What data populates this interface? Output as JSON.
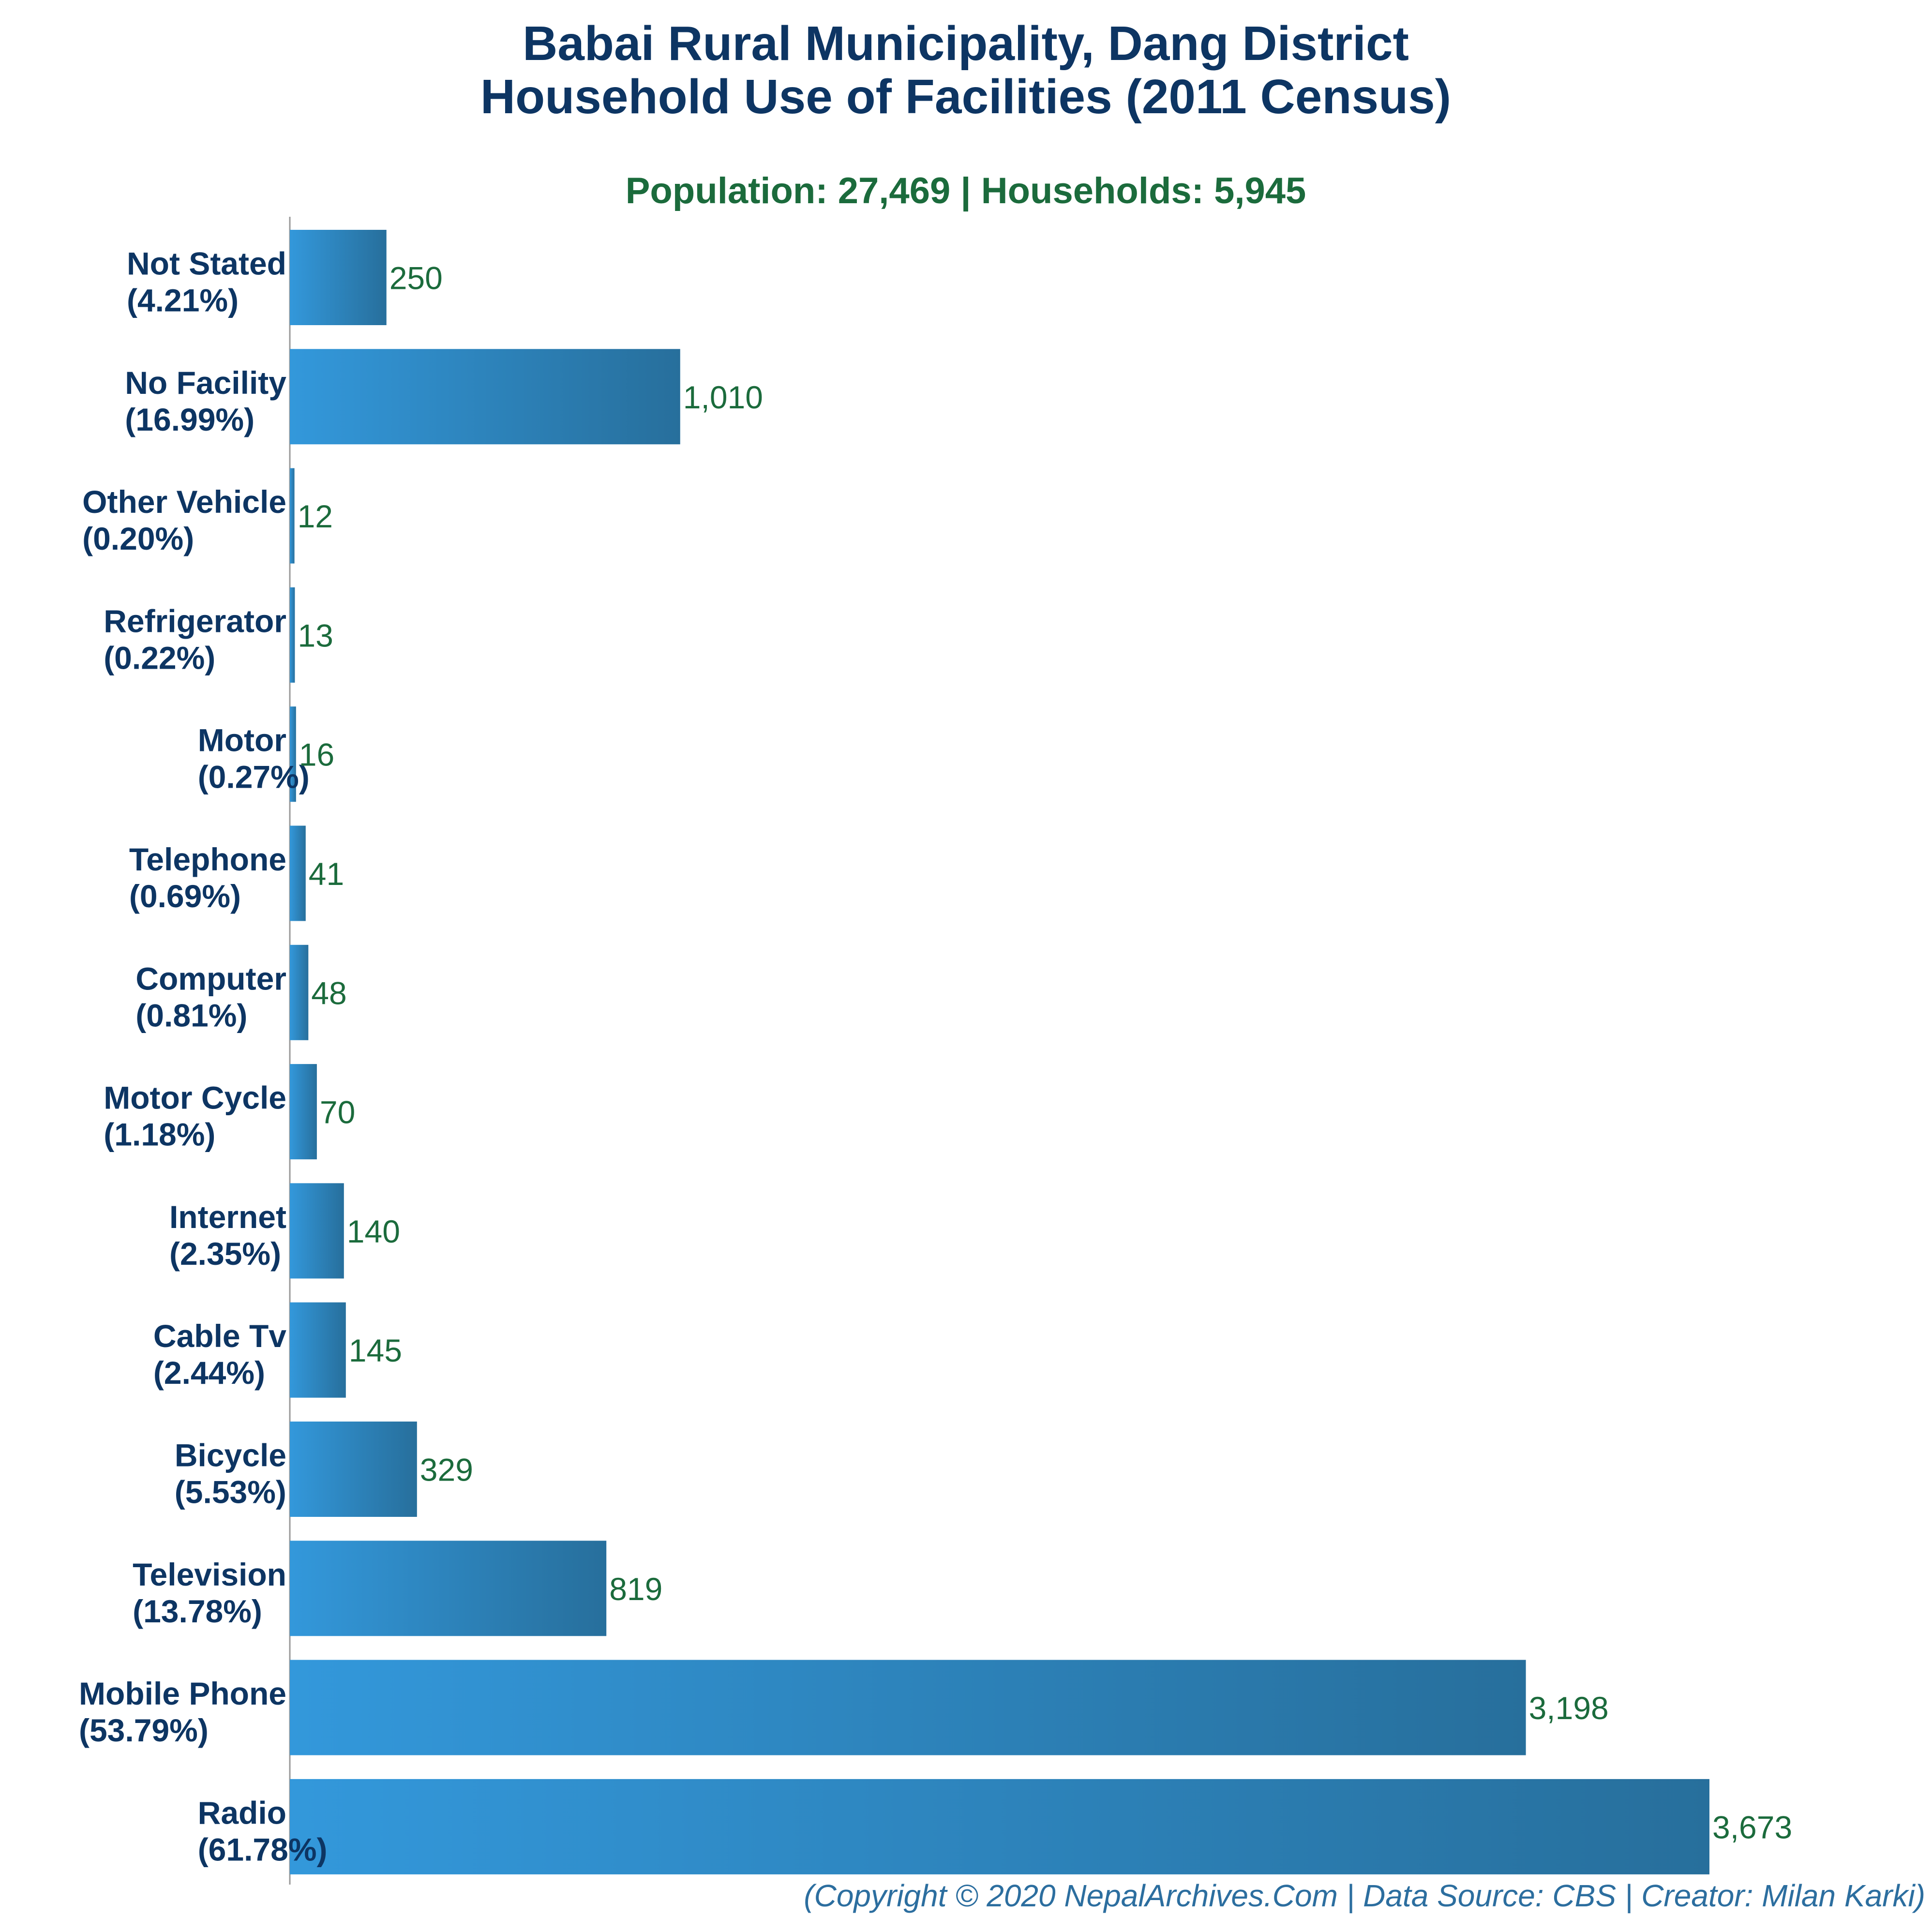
{
  "colors": {
    "title": "#0d3563",
    "subtitle": "#1b6b3c",
    "category_label": "#0d3563",
    "value_label": "#1b6b3c",
    "footer": "#2c6e9f",
    "axis": "#999999",
    "bar_start": "#3398db",
    "bar_end": "#276f9c"
  },
  "chart_data": {
    "type": "bar",
    "orientation": "horizontal",
    "title_lines": [
      "Babai Rural Municipality, Dang District",
      "Household Use of Facilities (2011 Census)"
    ],
    "subtitle": "Population: 27,469 | Households: 5,945",
    "categories": [
      "Not Stated",
      "No Facility",
      "Other Vehicle",
      "Refrigerator",
      "Motor",
      "Telephone",
      "Computer",
      "Motor Cycle",
      "Internet",
      "Cable Tv",
      "Bicycle",
      "Television",
      "Mobile Phone",
      "Radio"
    ],
    "percent_labels": [
      "(4.21%)",
      "(16.99%)",
      "(0.20%)",
      "(0.22%)",
      "(0.27%)",
      "(0.69%)",
      "(0.81%)",
      "(1.18%)",
      "(2.35%)",
      "(2.44%)",
      "(5.53%)",
      "(13.78%)",
      "(53.79%)",
      "(61.78%)"
    ],
    "values": [
      250,
      1010,
      12,
      13,
      16,
      41,
      48,
      70,
      140,
      145,
      329,
      819,
      3198,
      3673
    ],
    "value_labels": [
      "250",
      "1,010",
      "12",
      "13",
      "16",
      "41",
      "48",
      "70",
      "140",
      "145",
      "329",
      "819",
      "3,198",
      "3,673"
    ],
    "xlim": [
      0,
      3673
    ],
    "grid": false,
    "legend": "none"
  },
  "footer": "(Copyright © 2020 NepalArchives.Com | Data Source: CBS | Creator: Milan Karki)"
}
